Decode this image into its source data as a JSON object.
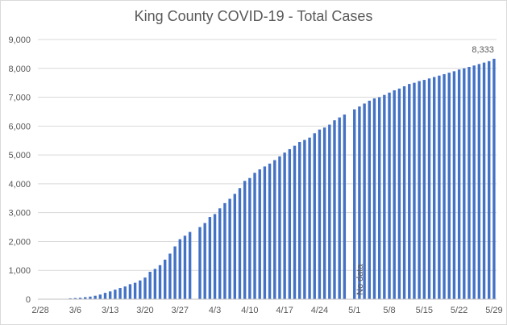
{
  "chart_data": {
    "type": "bar",
    "title": "King County COVID-19 - Total Cases",
    "xlabel": "",
    "ylabel": "",
    "ylim": [
      0,
      9000
    ],
    "y_ticks": [
      "0",
      "1,000",
      "2,000",
      "3,000",
      "4,000",
      "5,000",
      "6,000",
      "7,000",
      "8,000",
      "9,000"
    ],
    "x_ticks": [
      "2/28",
      "3/6",
      "3/13",
      "3/20",
      "3/27",
      "4/3",
      "4/10",
      "4/17",
      "4/24",
      "5/1",
      "5/8",
      "5/15",
      "5/22",
      "5/29"
    ],
    "x_start": "2/28",
    "grid": true,
    "bar_color": "#4472c4",
    "annotations": [
      {
        "text": "No data",
        "x": "5/2"
      },
      {
        "text": "8,333",
        "x": "6/3"
      }
    ],
    "values": [
      0,
      0,
      0,
      0,
      0,
      0,
      30,
      40,
      50,
      70,
      90,
      120,
      160,
      220,
      270,
      330,
      390,
      440,
      520,
      570,
      650,
      750,
      950,
      1050,
      1180,
      1370,
      1580,
      1830,
      2080,
      2200,
      2330,
      0,
      2500,
      2640,
      2850,
      2950,
      3150,
      3330,
      3480,
      3650,
      3850,
      4100,
      4200,
      4380,
      4500,
      4600,
      4700,
      4820,
      4950,
      5080,
      5200,
      5320,
      5450,
      5520,
      5600,
      5750,
      5880,
      5950,
      6050,
      6200,
      6300,
      6400,
      null,
      6580,
      6680,
      6780,
      6880,
      6960,
      7000,
      7080,
      7160,
      7240,
      7300,
      7380,
      7460,
      7500,
      7560,
      7600,
      7650,
      7700,
      7750,
      7800,
      7850,
      7900,
      7960,
      8000,
      8050,
      8100,
      8150,
      8200,
      8250,
      8333
    ]
  }
}
